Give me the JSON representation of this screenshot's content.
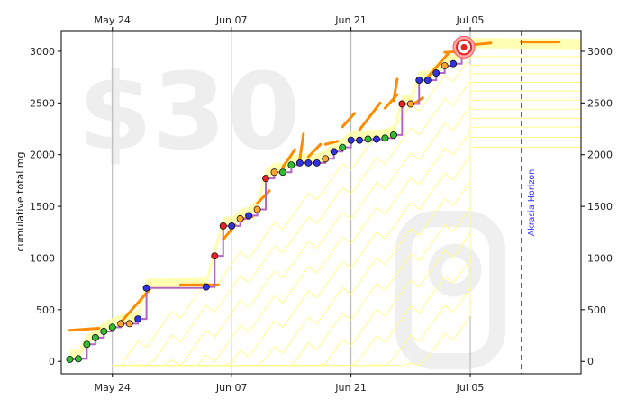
{
  "chart_data": {
    "type": "line",
    "title": "",
    "xlabel": "",
    "ylabel": "cumulative total mg",
    "x_ticks_top": [
      "May 24",
      "Jun 07",
      "Jun 21",
      "Jul 05"
    ],
    "x_ticks_bottom": [
      "May 24",
      "Jun 07",
      "Jun 21",
      "Jul 05"
    ],
    "x_tick_dates": [
      "2016-05-24",
      "2016-06-07",
      "2016-06-21",
      "2016-07-05"
    ],
    "xlim": [
      "2016-05-18",
      "2016-07-18"
    ],
    "y_ticks": [
      0,
      500,
      1000,
      1500,
      2000,
      2500,
      3000
    ],
    "ylim": [
      -120,
      3200
    ],
    "grid": "vertical at date ticks",
    "watermark_text": "$30",
    "annotation": "Akrasia Horizon",
    "akrasia_horizon_date": "2016-07-11",
    "colors": {
      "step_line": "#b366c0",
      "road_orange": "#ff8c00",
      "road_band": "#ffff99",
      "horizon": "#3333ff",
      "dot_green": "#33bb33",
      "dot_blue": "#3333dd",
      "dot_orange": "#ffa533",
      "dot_red": "#ee2222",
      "watermark": "#eeeeee"
    },
    "series": [
      {
        "type": "step",
        "points": [
          {
            "date": "2016-05-19",
            "value": 20,
            "color": "green"
          },
          {
            "date": "2016-05-20",
            "value": 25,
            "color": "green"
          },
          {
            "date": "2016-05-21",
            "value": 165,
            "color": "green"
          },
          {
            "date": "2016-05-22",
            "value": 230,
            "color": "green"
          },
          {
            "date": "2016-05-23",
            "value": 290,
            "color": "green"
          },
          {
            "date": "2016-05-24",
            "value": 330,
            "color": "green"
          },
          {
            "date": "2016-05-25",
            "value": 365,
            "color": "orange"
          },
          {
            "date": "2016-05-26",
            "value": 365,
            "color": "orange"
          },
          {
            "date": "2016-05-27",
            "value": 410,
            "color": "blue"
          },
          {
            "date": "2016-05-28",
            "value": 710,
            "color": "blue"
          },
          {
            "date": "2016-06-04",
            "value": 720,
            "color": "blue"
          },
          {
            "date": "2016-06-05",
            "value": 1020,
            "color": "red"
          },
          {
            "date": "2016-06-06",
            "value": 1310,
            "color": "red"
          },
          {
            "date": "2016-06-07",
            "value": 1310,
            "color": "blue"
          },
          {
            "date": "2016-06-08",
            "value": 1380,
            "color": "orange"
          },
          {
            "date": "2016-06-09",
            "value": 1410,
            "color": "blue"
          },
          {
            "date": "2016-06-10",
            "value": 1470,
            "color": "orange"
          },
          {
            "date": "2016-06-11",
            "value": 1770,
            "color": "red"
          },
          {
            "date": "2016-06-12",
            "value": 1830,
            "color": "orange"
          },
          {
            "date": "2016-06-13",
            "value": 1830,
            "color": "green"
          },
          {
            "date": "2016-06-14",
            "value": 1900,
            "color": "green"
          },
          {
            "date": "2016-06-15",
            "value": 1920,
            "color": "blue"
          },
          {
            "date": "2016-06-16",
            "value": 1920,
            "color": "blue"
          },
          {
            "date": "2016-06-17",
            "value": 1920,
            "color": "blue"
          },
          {
            "date": "2016-06-18",
            "value": 1960,
            "color": "orange"
          },
          {
            "date": "2016-06-19",
            "value": 2030,
            "color": "blue"
          },
          {
            "date": "2016-06-20",
            "value": 2070,
            "color": "green"
          },
          {
            "date": "2016-06-21",
            "value": 2140,
            "color": "blue"
          },
          {
            "date": "2016-06-22",
            "value": 2140,
            "color": "blue"
          },
          {
            "date": "2016-06-23",
            "value": 2150,
            "color": "green"
          },
          {
            "date": "2016-06-24",
            "value": 2150,
            "color": "blue"
          },
          {
            "date": "2016-06-25",
            "value": 2160,
            "color": "green"
          },
          {
            "date": "2016-06-26",
            "value": 2190,
            "color": "green"
          },
          {
            "date": "2016-06-27",
            "value": 2490,
            "color": "red"
          },
          {
            "date": "2016-06-28",
            "value": 2490,
            "color": "orange"
          },
          {
            "date": "2016-06-29",
            "value": 2720,
            "color": "blue"
          },
          {
            "date": "2016-06-30",
            "value": 2720,
            "color": "blue"
          },
          {
            "date": "2016-07-01",
            "value": 2790,
            "color": "blue"
          },
          {
            "date": "2016-07-02",
            "value": 2860,
            "color": "orange"
          },
          {
            "date": "2016-07-03",
            "value": 2880,
            "color": "blue"
          },
          {
            "date": "2016-07-04",
            "value": 2990,
            "color": "green"
          },
          {
            "date": "2016-07-05",
            "value": 3040,
            "color": "green"
          }
        ]
      }
    ],
    "road_segments": [
      {
        "start": "2016-05-19",
        "end": "2016-05-22",
        "from": 300,
        "to": 320
      },
      {
        "start": "2016-05-25",
        "end": "2016-05-28",
        "from": 380,
        "to": 700
      },
      {
        "start": "2016-06-01",
        "end": "2016-06-05",
        "from": 740,
        "to": 740
      },
      {
        "start": "2016-06-06",
        "end": "2016-06-07",
        "from": 1180,
        "to": 1320
      },
      {
        "start": "2016-06-08",
        "end": "2016-06-09",
        "from": 1370,
        "to": 1400
      },
      {
        "start": "2016-06-10",
        "end": "2016-06-11",
        "from": 1530,
        "to": 1650
      },
      {
        "start": "2016-06-13",
        "end": "2016-06-14",
        "from": 1880,
        "to": 2050
      },
      {
        "start": "2016-06-15",
        "end": "2016-06-15",
        "from": 1960,
        "to": 2200
      },
      {
        "start": "2016-06-16",
        "end": "2016-06-17",
        "from": 1980,
        "to": 2100
      },
      {
        "start": "2016-06-18",
        "end": "2016-06-19",
        "from": 2100,
        "to": 2130
      },
      {
        "start": "2016-06-20",
        "end": "2016-06-21",
        "from": 2270,
        "to": 2400
      },
      {
        "start": "2016-06-22",
        "end": "2016-06-24",
        "from": 2240,
        "to": 2500
      },
      {
        "start": "2016-06-25",
        "end": "2016-06-26",
        "from": 2450,
        "to": 2580
      },
      {
        "start": "2016-06-26",
        "end": "2016-06-26",
        "from": 2520,
        "to": 2730
      },
      {
        "start": "2016-06-28",
        "end": "2016-06-29",
        "from": 2470,
        "to": 2550
      },
      {
        "start": "2016-06-30",
        "end": "2016-07-02",
        "from": 2750,
        "to": 2980
      },
      {
        "start": "2016-07-02",
        "end": "2016-07-04",
        "from": 2990,
        "to": 3000
      },
      {
        "start": "2016-07-05",
        "end": "2016-07-07",
        "from": 3060,
        "to": 3080
      },
      {
        "start": "2016-07-11",
        "end": "2016-07-15",
        "from": 3090,
        "to": 3090
      }
    ]
  }
}
